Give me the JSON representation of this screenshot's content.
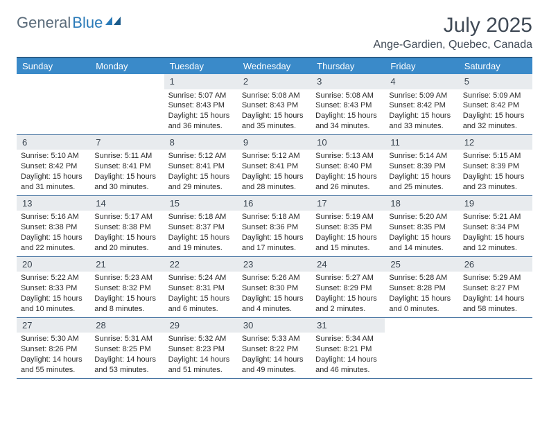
{
  "logo": {
    "word1": "General",
    "word2": "Blue"
  },
  "title": "July 2025",
  "location": "Ange-Gardien, Quebec, Canada",
  "weekdays": [
    "Sunday",
    "Monday",
    "Tuesday",
    "Wednesday",
    "Thursday",
    "Friday",
    "Saturday"
  ],
  "colors": {
    "header_bg": "#3a8ac9",
    "header_border": "#2a5f8a",
    "daynum_bg": "#e8ebee",
    "row_border": "#3a6a9a",
    "logo_gray": "#5a6b7a",
    "logo_blue": "#2a7ab8",
    "title_color": "#404a56"
  },
  "weeks": [
    [
      null,
      null,
      {
        "n": "1",
        "sr": "Sunrise: 5:07 AM",
        "ss": "Sunset: 8:43 PM",
        "d1": "Daylight: 15 hours",
        "d2": "and 36 minutes."
      },
      {
        "n": "2",
        "sr": "Sunrise: 5:08 AM",
        "ss": "Sunset: 8:43 PM",
        "d1": "Daylight: 15 hours",
        "d2": "and 35 minutes."
      },
      {
        "n": "3",
        "sr": "Sunrise: 5:08 AM",
        "ss": "Sunset: 8:43 PM",
        "d1": "Daylight: 15 hours",
        "d2": "and 34 minutes."
      },
      {
        "n": "4",
        "sr": "Sunrise: 5:09 AM",
        "ss": "Sunset: 8:42 PM",
        "d1": "Daylight: 15 hours",
        "d2": "and 33 minutes."
      },
      {
        "n": "5",
        "sr": "Sunrise: 5:09 AM",
        "ss": "Sunset: 8:42 PM",
        "d1": "Daylight: 15 hours",
        "d2": "and 32 minutes."
      }
    ],
    [
      {
        "n": "6",
        "sr": "Sunrise: 5:10 AM",
        "ss": "Sunset: 8:42 PM",
        "d1": "Daylight: 15 hours",
        "d2": "and 31 minutes."
      },
      {
        "n": "7",
        "sr": "Sunrise: 5:11 AM",
        "ss": "Sunset: 8:41 PM",
        "d1": "Daylight: 15 hours",
        "d2": "and 30 minutes."
      },
      {
        "n": "8",
        "sr": "Sunrise: 5:12 AM",
        "ss": "Sunset: 8:41 PM",
        "d1": "Daylight: 15 hours",
        "d2": "and 29 minutes."
      },
      {
        "n": "9",
        "sr": "Sunrise: 5:12 AM",
        "ss": "Sunset: 8:41 PM",
        "d1": "Daylight: 15 hours",
        "d2": "and 28 minutes."
      },
      {
        "n": "10",
        "sr": "Sunrise: 5:13 AM",
        "ss": "Sunset: 8:40 PM",
        "d1": "Daylight: 15 hours",
        "d2": "and 26 minutes."
      },
      {
        "n": "11",
        "sr": "Sunrise: 5:14 AM",
        "ss": "Sunset: 8:39 PM",
        "d1": "Daylight: 15 hours",
        "d2": "and 25 minutes."
      },
      {
        "n": "12",
        "sr": "Sunrise: 5:15 AM",
        "ss": "Sunset: 8:39 PM",
        "d1": "Daylight: 15 hours",
        "d2": "and 23 minutes."
      }
    ],
    [
      {
        "n": "13",
        "sr": "Sunrise: 5:16 AM",
        "ss": "Sunset: 8:38 PM",
        "d1": "Daylight: 15 hours",
        "d2": "and 22 minutes."
      },
      {
        "n": "14",
        "sr": "Sunrise: 5:17 AM",
        "ss": "Sunset: 8:38 PM",
        "d1": "Daylight: 15 hours",
        "d2": "and 20 minutes."
      },
      {
        "n": "15",
        "sr": "Sunrise: 5:18 AM",
        "ss": "Sunset: 8:37 PM",
        "d1": "Daylight: 15 hours",
        "d2": "and 19 minutes."
      },
      {
        "n": "16",
        "sr": "Sunrise: 5:18 AM",
        "ss": "Sunset: 8:36 PM",
        "d1": "Daylight: 15 hours",
        "d2": "and 17 minutes."
      },
      {
        "n": "17",
        "sr": "Sunrise: 5:19 AM",
        "ss": "Sunset: 8:35 PM",
        "d1": "Daylight: 15 hours",
        "d2": "and 15 minutes."
      },
      {
        "n": "18",
        "sr": "Sunrise: 5:20 AM",
        "ss": "Sunset: 8:35 PM",
        "d1": "Daylight: 15 hours",
        "d2": "and 14 minutes."
      },
      {
        "n": "19",
        "sr": "Sunrise: 5:21 AM",
        "ss": "Sunset: 8:34 PM",
        "d1": "Daylight: 15 hours",
        "d2": "and 12 minutes."
      }
    ],
    [
      {
        "n": "20",
        "sr": "Sunrise: 5:22 AM",
        "ss": "Sunset: 8:33 PM",
        "d1": "Daylight: 15 hours",
        "d2": "and 10 minutes."
      },
      {
        "n": "21",
        "sr": "Sunrise: 5:23 AM",
        "ss": "Sunset: 8:32 PM",
        "d1": "Daylight: 15 hours",
        "d2": "and 8 minutes."
      },
      {
        "n": "22",
        "sr": "Sunrise: 5:24 AM",
        "ss": "Sunset: 8:31 PM",
        "d1": "Daylight: 15 hours",
        "d2": "and 6 minutes."
      },
      {
        "n": "23",
        "sr": "Sunrise: 5:26 AM",
        "ss": "Sunset: 8:30 PM",
        "d1": "Daylight: 15 hours",
        "d2": "and 4 minutes."
      },
      {
        "n": "24",
        "sr": "Sunrise: 5:27 AM",
        "ss": "Sunset: 8:29 PM",
        "d1": "Daylight: 15 hours",
        "d2": "and 2 minutes."
      },
      {
        "n": "25",
        "sr": "Sunrise: 5:28 AM",
        "ss": "Sunset: 8:28 PM",
        "d1": "Daylight: 15 hours",
        "d2": "and 0 minutes."
      },
      {
        "n": "26",
        "sr": "Sunrise: 5:29 AM",
        "ss": "Sunset: 8:27 PM",
        "d1": "Daylight: 14 hours",
        "d2": "and 58 minutes."
      }
    ],
    [
      {
        "n": "27",
        "sr": "Sunrise: 5:30 AM",
        "ss": "Sunset: 8:26 PM",
        "d1": "Daylight: 14 hours",
        "d2": "and 55 minutes."
      },
      {
        "n": "28",
        "sr": "Sunrise: 5:31 AM",
        "ss": "Sunset: 8:25 PM",
        "d1": "Daylight: 14 hours",
        "d2": "and 53 minutes."
      },
      {
        "n": "29",
        "sr": "Sunrise: 5:32 AM",
        "ss": "Sunset: 8:23 PM",
        "d1": "Daylight: 14 hours",
        "d2": "and 51 minutes."
      },
      {
        "n": "30",
        "sr": "Sunrise: 5:33 AM",
        "ss": "Sunset: 8:22 PM",
        "d1": "Daylight: 14 hours",
        "d2": "and 49 minutes."
      },
      {
        "n": "31",
        "sr": "Sunrise: 5:34 AM",
        "ss": "Sunset: 8:21 PM",
        "d1": "Daylight: 14 hours",
        "d2": "and 46 minutes."
      },
      null,
      null
    ]
  ]
}
